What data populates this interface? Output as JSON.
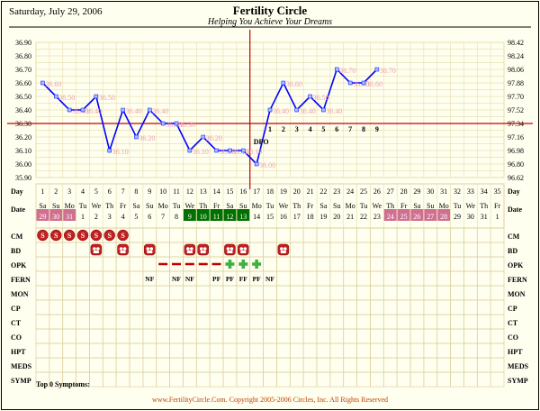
{
  "header": {
    "date": "Saturday, July 29, 2006",
    "title": "Fertility Circle",
    "subtitle": "Helping You Achieve Your Dreams"
  },
  "footer": {
    "symptoms": "Top 0 Symptoms:",
    "copyright": "www.FertilityCircle.Com. Copyright 2005-2006 Circles, Inc. All Rights Reserved"
  },
  "colors": {
    "background": "#fffff0",
    "line": "#0000ff",
    "point_label": "#f0a0b0",
    "coverline": "#c00000",
    "period": "#c02020",
    "fertile_date": "#007000",
    "future_date": "#d07090",
    "opk_plus": "#40b040"
  },
  "chart_data": {
    "type": "line",
    "title": "Fertility Circle",
    "subtitle": "Helping You Achieve Your Dreams",
    "y_left_ticks": [
      "36.90",
      "36.80",
      "36.70",
      "36.60",
      "36.50",
      "36.40",
      "36.30",
      "36.20",
      "36.10",
      "36.00",
      "35.90"
    ],
    "y_right_ticks": [
      "98.42",
      "98.24",
      "98.06",
      "97.88",
      "97.70",
      "97.52",
      "97.34",
      "97.16",
      "96.98",
      "96.80",
      "96.62"
    ],
    "ylim": [
      35.85,
      36.95
    ],
    "coverline": 36.3,
    "ovulation_day": 17,
    "x": [
      1,
      2,
      3,
      4,
      5,
      6,
      7,
      8,
      9,
      10,
      11,
      12,
      13,
      14,
      15,
      16,
      17,
      18,
      19,
      20,
      21,
      22,
      23,
      24,
      25,
      26
    ],
    "values": [
      36.6,
      36.5,
      36.4,
      36.4,
      36.5,
      36.1,
      36.4,
      36.2,
      36.4,
      36.3,
      36.3,
      36.1,
      36.2,
      36.1,
      36.1,
      36.1,
      36.0,
      36.4,
      36.6,
      36.4,
      36.5,
      36.4,
      36.7,
      36.6,
      36.6,
      36.7
    ],
    "point_labels": [
      "36.60",
      "36.50",
      "36.40",
      "36.40",
      "36.50",
      "36.10",
      "36.40",
      "36.20",
      "36.40",
      "36.30",
      "36.30",
      "36.10",
      "36.20",
      "36.10",
      "36.10",
      "36.10",
      "36.00",
      "36.40",
      "36.60",
      "36.40",
      "36.50",
      "36.40",
      "36.70",
      "36.60",
      "36.60",
      "36.70"
    ],
    "days": [
      "1",
      "2",
      "3",
      "4",
      "5",
      "6",
      "7",
      "8",
      "9",
      "10",
      "11",
      "12",
      "13",
      "14",
      "15",
      "16",
      "17",
      "18",
      "19",
      "20",
      "21",
      "22",
      "23",
      "24",
      "25",
      "26",
      "27",
      "28",
      "29",
      "30",
      "31",
      "32",
      "33",
      "34",
      "35"
    ],
    "weekdays": [
      "Sa",
      "Su",
      "Mo",
      "Tu",
      "We",
      "Th",
      "Fr",
      "Sa",
      "Su",
      "Mo",
      "Tu",
      "We",
      "Th",
      "Fr",
      "Sa",
      "Su",
      "Mo",
      "Tu",
      "We",
      "Th",
      "Fr",
      "Sa",
      "Su",
      "Mo",
      "Tu",
      "We",
      "Th",
      "Fr",
      "Sa",
      "Su",
      "Mo",
      "Tu",
      "We",
      "Th",
      "Fr"
    ],
    "dates": [
      "29",
      "30",
      "31",
      "1",
      "2",
      "3",
      "4",
      "5",
      "6",
      "7",
      "8",
      "9",
      "10",
      "11",
      "12",
      "13",
      "14",
      "15",
      "16",
      "17",
      "18",
      "19",
      "20",
      "21",
      "22",
      "23",
      "24",
      "25",
      "26",
      "27",
      "28",
      "29",
      "30",
      "31",
      "1"
    ],
    "dpo_label": "DPO",
    "dpo": [
      {
        "day": 18,
        "label": "1"
      },
      {
        "day": 19,
        "label": "2"
      },
      {
        "day": 20,
        "label": "3"
      },
      {
        "day": 21,
        "label": "4"
      },
      {
        "day": 22,
        "label": "5"
      },
      {
        "day": 23,
        "label": "6"
      },
      {
        "day": 24,
        "label": "7"
      },
      {
        "day": 25,
        "label": "8"
      },
      {
        "day": 26,
        "label": "9"
      }
    ],
    "rows": {
      "day": "Day",
      "date": "Date",
      "labels": [
        "CM",
        "BD",
        "OPK",
        "FERN",
        "MON",
        "CP",
        "CT",
        "CO",
        "HPT",
        "MEDS",
        "SYMP"
      ]
    },
    "period_days": [
      1,
      2,
      3,
      4,
      5,
      6,
      7
    ],
    "period_marker": "S",
    "period_first_marker": "S",
    "bd_days": [
      5,
      7,
      9,
      12,
      13,
      15,
      16,
      19
    ],
    "opk_dash_days": [
      10,
      11,
      12,
      13,
      14
    ],
    "opk_plus_days": [
      15,
      16,
      17
    ],
    "fern": [
      {
        "day": 9,
        "label": "NF"
      },
      {
        "day": 11,
        "label": "NF"
      },
      {
        "day": 12,
        "label": "NF"
      },
      {
        "day": 14,
        "label": "PF"
      },
      {
        "day": 15,
        "label": "PF"
      },
      {
        "day": 16,
        "label": "FF"
      },
      {
        "day": 17,
        "label": "PF"
      },
      {
        "day": 18,
        "label": "NF"
      }
    ],
    "fertile_days": [
      12,
      13,
      14,
      15,
      16
    ],
    "future_days": [
      27,
      28,
      29,
      30,
      31
    ]
  }
}
